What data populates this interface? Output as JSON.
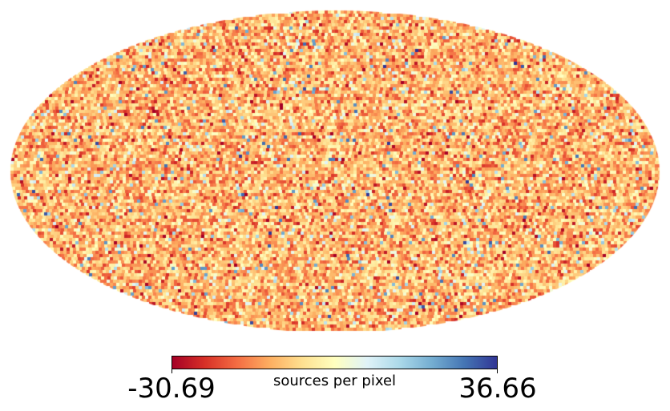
{
  "chart_data": {
    "type": "heatmap",
    "projection": "mollweide",
    "colormap": "RdYlBu",
    "colormap_stops": [
      "#a50026",
      "#d73027",
      "#f46d43",
      "#fdae61",
      "#fee090",
      "#ffffbf",
      "#e0f3f8",
      "#abd9e9",
      "#74add1",
      "#4575b4",
      "#313695"
    ],
    "colorbar": {
      "min": -30.69,
      "max": 36.66,
      "min_label": "-30.69",
      "max_label": "36.66",
      "label": "sources per pixel",
      "orientation": "horizontal",
      "placement": "bottom"
    },
    "background_color": "#ffffff",
    "grid": false
  }
}
